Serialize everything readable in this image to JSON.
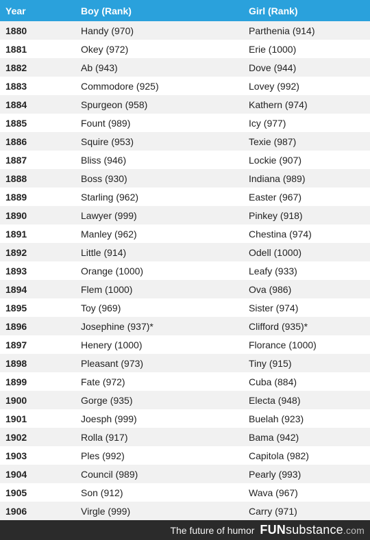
{
  "table": {
    "headers": {
      "year": "Year",
      "boy": "Boy (Rank)",
      "girl": "Girl (Rank)"
    },
    "rows": [
      {
        "year": "1880",
        "boy": "Handy (970)",
        "girl": "Parthenia (914)"
      },
      {
        "year": "1881",
        "boy": "Okey (972)",
        "girl": "Erie (1000)"
      },
      {
        "year": "1882",
        "boy": "Ab (943)",
        "girl": "Dove (944)"
      },
      {
        "year": "1883",
        "boy": "Commodore (925)",
        "girl": "Lovey (992)"
      },
      {
        "year": "1884",
        "boy": "Spurgeon (958)",
        "girl": "Kathern (974)"
      },
      {
        "year": "1885",
        "boy": "Fount (989)",
        "girl": "Icy (977)"
      },
      {
        "year": "1886",
        "boy": "Squire (953)",
        "girl": "Texie (987)"
      },
      {
        "year": "1887",
        "boy": "Bliss (946)",
        "girl": "Lockie (907)"
      },
      {
        "year": "1888",
        "boy": "Boss (930)",
        "girl": "Indiana (989)"
      },
      {
        "year": "1889",
        "boy": "Starling (962)",
        "girl": "Easter (967)"
      },
      {
        "year": "1890",
        "boy": "Lawyer (999)",
        "girl": "Pinkey (918)"
      },
      {
        "year": "1891",
        "boy": "Manley (962)",
        "girl": "Chestina (974)"
      },
      {
        "year": "1892",
        "boy": "Little (914)",
        "girl": "Odell (1000)"
      },
      {
        "year": "1893",
        "boy": "Orange (1000)",
        "girl": "Leafy (933)"
      },
      {
        "year": "1894",
        "boy": "Flem (1000)",
        "girl": "Ova (986)"
      },
      {
        "year": "1895",
        "boy": "Toy (969)",
        "girl": "Sister (974)"
      },
      {
        "year": "1896",
        "boy": "Josephine (937)*",
        "girl": "Clifford (935)*"
      },
      {
        "year": "1897",
        "boy": "Henery (1000)",
        "girl": "Florance (1000)"
      },
      {
        "year": "1898",
        "boy": "Pleasant (973)",
        "girl": "Tiny (915)"
      },
      {
        "year": "1899",
        "boy": "Fate (972)",
        "girl": "Cuba (884)"
      },
      {
        "year": "1900",
        "boy": "Gorge (935)",
        "girl": "Electa (948)"
      },
      {
        "year": "1901",
        "boy": "Joesph (999)",
        "girl": "Buelah (923)"
      },
      {
        "year": "1902",
        "boy": "Rolla (917)",
        "girl": "Bama (942)"
      },
      {
        "year": "1903",
        "boy": "Ples (992)",
        "girl": "Capitola (982)"
      },
      {
        "year": "1904",
        "boy": "Council (989)",
        "girl": "Pearly (993)"
      },
      {
        "year": "1905",
        "boy": "Son (912)",
        "girl": "Wava (967)"
      },
      {
        "year": "1906",
        "boy": "Virgle (999)",
        "girl": "Carry (971)"
      }
    ]
  },
  "footer": {
    "tagline": "The future of humor",
    "brand_fun": "FUN",
    "brand_substance": "substance",
    "brand_com": ".com"
  },
  "colors": {
    "header_bg": "#2aa1dc",
    "stripe": "#f1f1f1",
    "footer_bg": "#2b2b2b"
  }
}
